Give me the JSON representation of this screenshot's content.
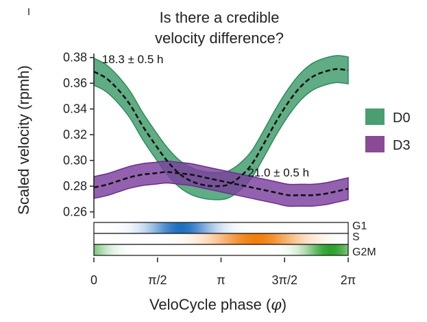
{
  "chart_data": {
    "type": "line",
    "title": [
      "Is there a credible",
      "velocity difference?"
    ],
    "xlabel_prefix": "VeloCycle phase (",
    "xlabel_symbol": "φ",
    "xlabel_suffix": ")",
    "ylabel": "Scaled velocity (rpmh)",
    "xlim": [
      0,
      6.2832
    ],
    "ylim": [
      0.255,
      0.382
    ],
    "x_ticks": [
      {
        "value": 0,
        "label": "0"
      },
      {
        "value": 1.5708,
        "label": "π/2"
      },
      {
        "value": 3.1416,
        "label": "π"
      },
      {
        "value": 4.7124,
        "label": "3π/2"
      },
      {
        "value": 6.2832,
        "label": "2π"
      }
    ],
    "y_ticks": [
      {
        "value": 0.26,
        "label": "0.26"
      },
      {
        "value": 0.28,
        "label": "0.28"
      },
      {
        "value": 0.3,
        "label": "0.30"
      },
      {
        "value": 0.32,
        "label": "0.32"
      },
      {
        "value": 0.34,
        "label": "0.34"
      },
      {
        "value": 0.36,
        "label": "0.36"
      },
      {
        "value": 0.38,
        "label": "0.38"
      }
    ],
    "series": [
      {
        "name": "D0",
        "color": "#2e8b57",
        "fill": "#3d9a6a",
        "mean": [
          [
            0.0,
            0.369
          ],
          [
            0.3,
            0.364
          ],
          [
            0.6,
            0.355
          ],
          [
            0.9,
            0.343
          ],
          [
            1.2,
            0.327
          ],
          [
            1.5,
            0.313
          ],
          [
            1.8,
            0.3
          ],
          [
            2.1,
            0.29
          ],
          [
            2.4,
            0.284
          ],
          [
            2.7,
            0.281
          ],
          [
            3.0,
            0.28
          ],
          [
            3.3,
            0.281
          ],
          [
            3.6,
            0.287
          ],
          [
            3.9,
            0.297
          ],
          [
            4.2,
            0.313
          ],
          [
            4.5,
            0.33
          ],
          [
            4.8,
            0.345
          ],
          [
            5.1,
            0.357
          ],
          [
            5.4,
            0.365
          ],
          [
            5.7,
            0.369
          ],
          [
            6.0,
            0.371
          ],
          [
            6.2832,
            0.37
          ]
        ],
        "band_halfwidth": 0.0105
      },
      {
        "name": "D3",
        "color": "#6a2e8a",
        "fill": "#7b3f9e",
        "mean": [
          [
            0.0,
            0.279
          ],
          [
            0.3,
            0.281
          ],
          [
            0.6,
            0.284
          ],
          [
            0.9,
            0.287
          ],
          [
            1.2,
            0.289
          ],
          [
            1.5,
            0.29
          ],
          [
            1.8,
            0.291
          ],
          [
            2.1,
            0.29
          ],
          [
            2.4,
            0.289
          ],
          [
            2.7,
            0.287
          ],
          [
            3.0,
            0.285
          ],
          [
            3.3,
            0.283
          ],
          [
            3.6,
            0.281
          ],
          [
            3.9,
            0.279
          ],
          [
            4.2,
            0.277
          ],
          [
            4.5,
            0.275
          ],
          [
            4.8,
            0.273
          ],
          [
            5.1,
            0.273
          ],
          [
            5.4,
            0.273
          ],
          [
            5.7,
            0.274
          ],
          [
            6.0,
            0.276
          ],
          [
            6.2832,
            0.278
          ]
        ],
        "band_halfwidth": 0.0085
      }
    ],
    "annotations": [
      {
        "text": "18.3 ± 0.5 h",
        "x": 0.2,
        "y": 0.3755
      },
      {
        "text": "21.0 ± 0.5 h",
        "x": 3.8,
        "y": 0.2875
      }
    ],
    "legend": [
      {
        "label": "D0",
        "color": "#4a9e72"
      },
      {
        "label": "D3",
        "color": "#8a4a96"
      }
    ],
    "phase_tracks": [
      {
        "label": "G1",
        "color": "#1f6fc0",
        "peak": 2.15,
        "width": 0.55
      },
      {
        "label": "S",
        "color": "#f08010",
        "peak": 4.0,
        "width": 0.75
      },
      {
        "label": "G2M",
        "color": "#2ca02c",
        "peak": 5.85,
        "width": 0.45
      }
    ]
  }
}
